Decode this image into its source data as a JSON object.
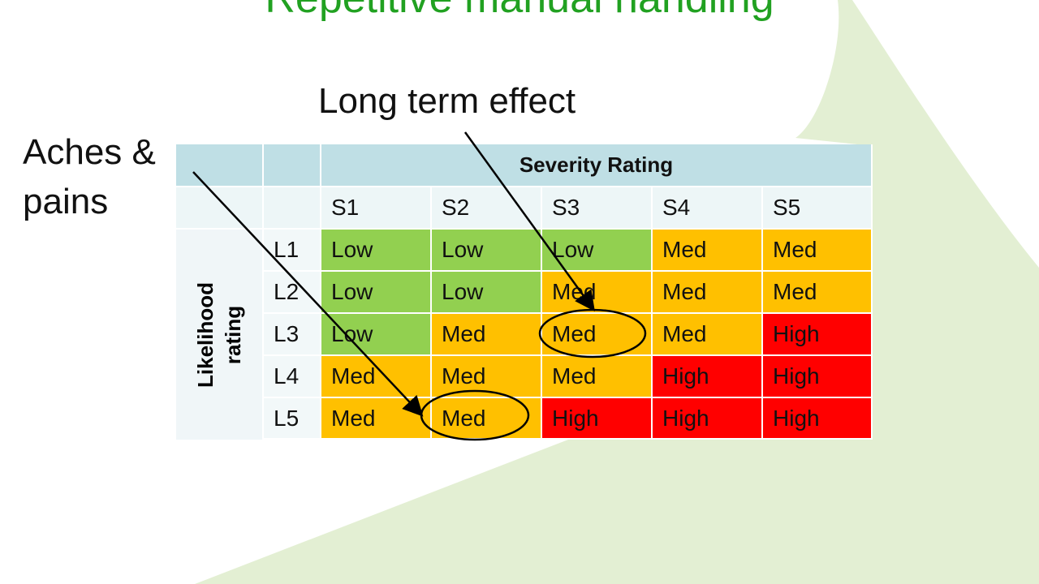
{
  "slide": {
    "title": "Repetitive manual handling"
  },
  "annotations": {
    "long_term_effect": "Long term effect",
    "aches_pains_line1": "Aches &",
    "aches_pains_line2": "pains"
  },
  "matrix": {
    "severity_header": "Severity Rating",
    "likelihood_header_line1": "Likelihood",
    "likelihood_header_line2": "rating",
    "severity_levels": [
      "S1",
      "S2",
      "S3",
      "S4",
      "S5"
    ],
    "likelihood_levels": [
      "L1",
      "L2",
      "L3",
      "L4",
      "L5"
    ],
    "rows": [
      [
        "Low",
        "Low",
        "Low",
        "Med",
        "Med"
      ],
      [
        "Low",
        "Low",
        "Med",
        "Med",
        "Med"
      ],
      [
        "Low",
        "Med",
        "Med",
        "Med",
        "High"
      ],
      [
        "Med",
        "Med",
        "Med",
        "High",
        "High"
      ],
      [
        "Med",
        "Med",
        "High",
        "High",
        "High"
      ]
    ],
    "rating_colors": {
      "Low": "#92d050",
      "Med": "#ffc000",
      "High": "#ff0000"
    },
    "circled_cells": [
      {
        "likelihood": "L3",
        "severity": "S3",
        "annotation": "Long term effect"
      },
      {
        "likelihood": "L5",
        "severity": "S2",
        "annotation": "Aches & pains"
      }
    ]
  },
  "colors": {
    "title": "#21a121",
    "background_shape": "#e3efd3",
    "header_blue": "#bfdfe5"
  }
}
